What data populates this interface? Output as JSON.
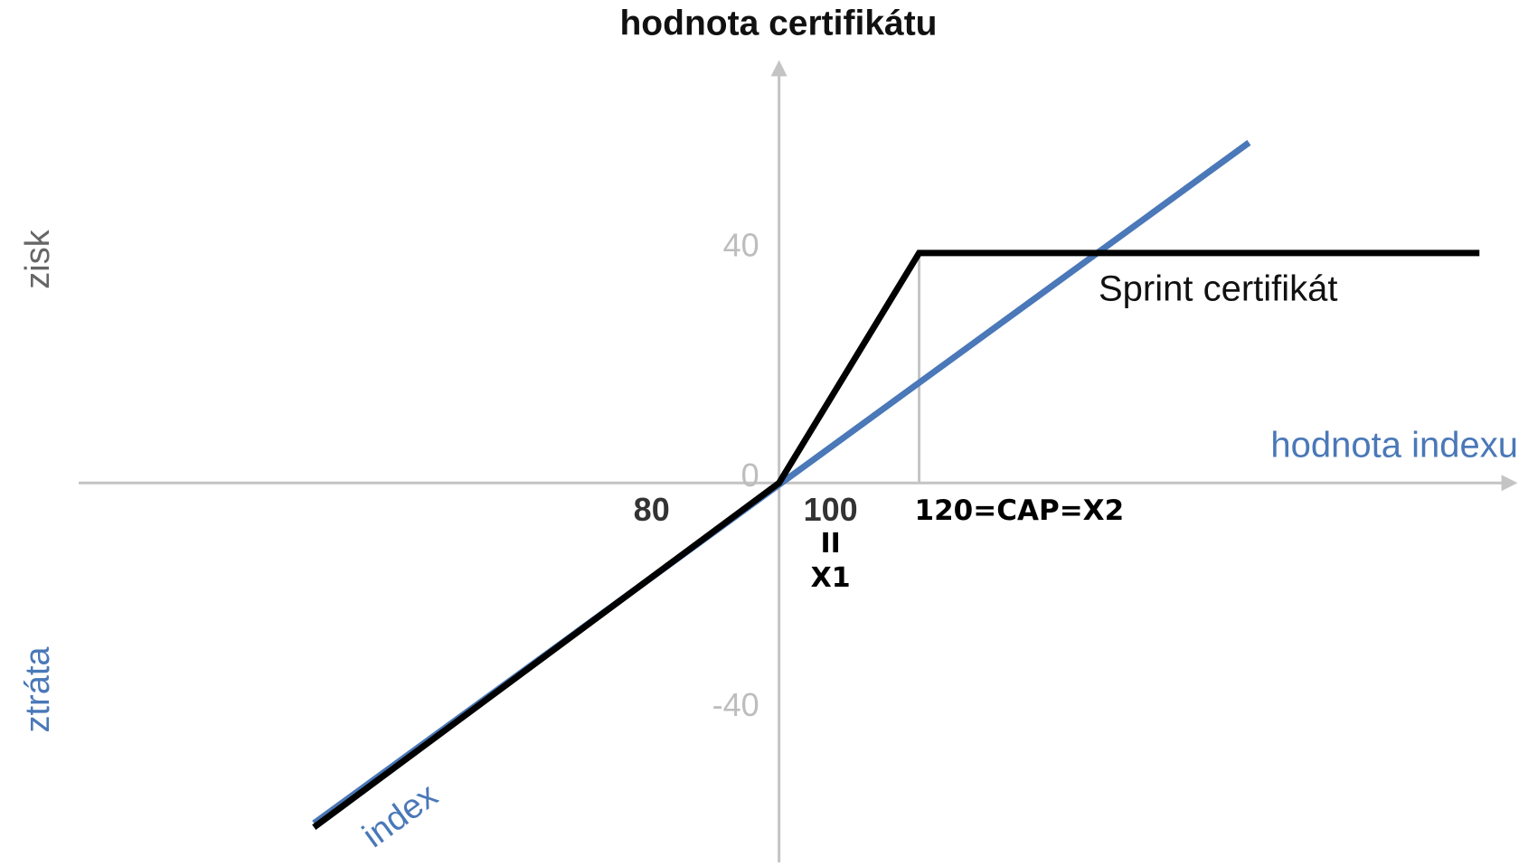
{
  "chart_data": {
    "type": "line",
    "title": "hodnota certifikátu",
    "x_label": "hodnota indexu",
    "gain_label": "zisk",
    "loss_label": "ztráta",
    "annotations": [
      "II",
      "X1"
    ],
    "xlim": [
      0,
      205
    ],
    "ylim": [
      -66,
      73
    ],
    "xticks": [
      80,
      100,
      {
        "value": 120,
        "label": "120=CAP=X2"
      }
    ],
    "yticks": [
      40,
      0,
      -40
    ],
    "series": [
      {
        "name": "index",
        "color": "#4a78b8",
        "x": [
          33.6,
          167.1
        ],
        "values": [
          -59.2,
          59.2
        ]
      },
      {
        "name": "Sprint certifikát",
        "color": "#000000",
        "x": [
          33.6,
          100,
          120,
          200
        ],
        "values": [
          -59.9,
          0,
          40,
          40
        ]
      }
    ]
  }
}
